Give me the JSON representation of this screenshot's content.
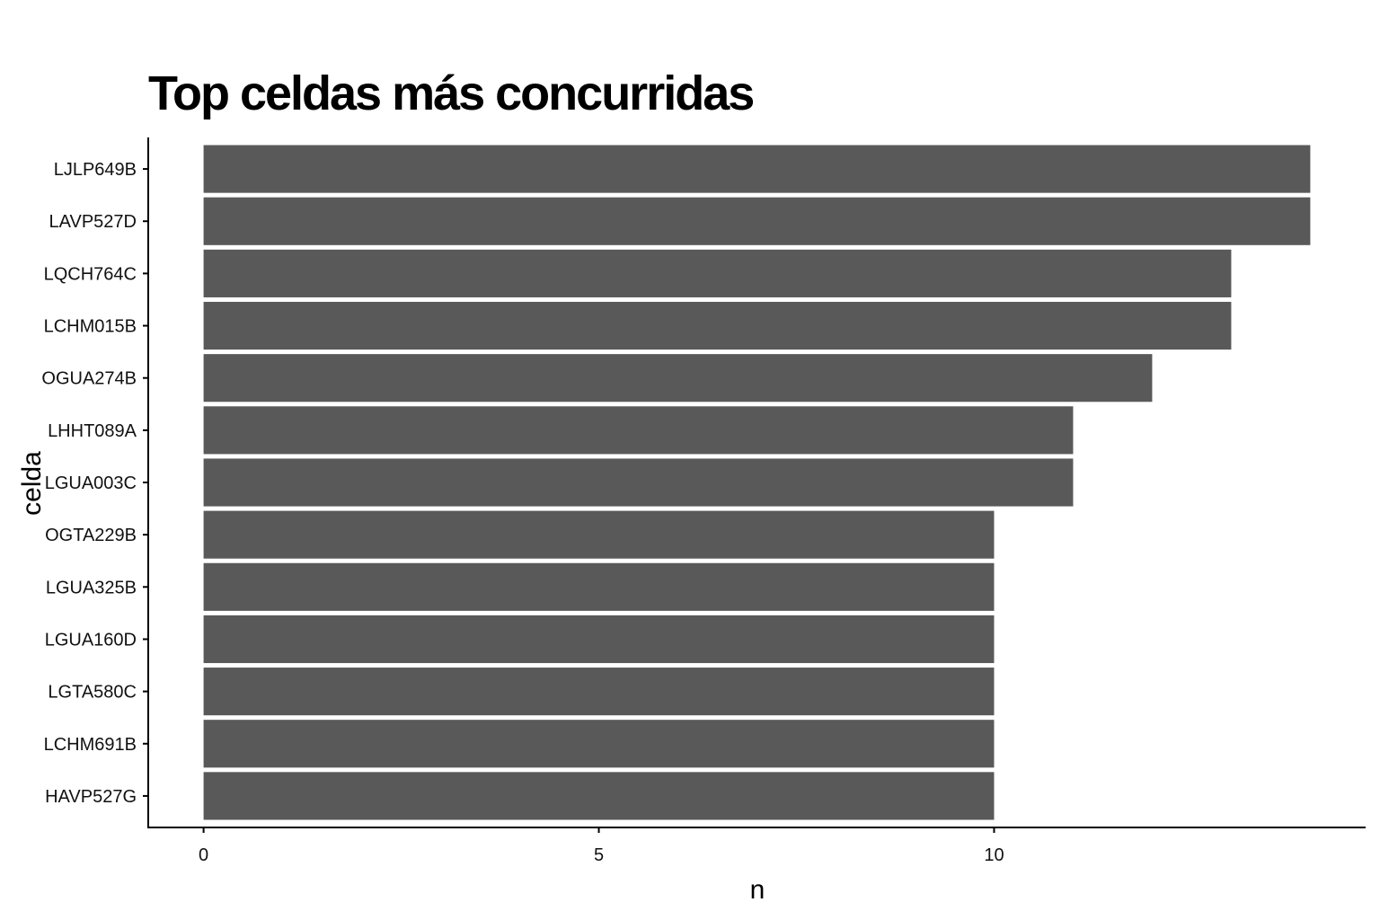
{
  "chart_data": {
    "type": "bar",
    "orientation": "horizontal",
    "title": "Top celdas más concurridas",
    "xlabel": "n",
    "ylabel": "celda",
    "categories": [
      "LJLP649B",
      "LAVP527D",
      "LQCH764C",
      "LCHM015B",
      "OGUA274B",
      "LHHT089A",
      "LGUA003C",
      "OGTA229B",
      "LGUA325B",
      "LGUA160D",
      "LGTA580C",
      "LCHM691B",
      "HAVP527G"
    ],
    "values": [
      14,
      14,
      13,
      13,
      12,
      11,
      11,
      10,
      10,
      10,
      10,
      10,
      10
    ],
    "xticks": [
      0,
      5,
      10
    ],
    "xlim": [
      -0.7,
      14.7
    ],
    "grid": false,
    "legend": "none",
    "bar_color": "#595959"
  }
}
